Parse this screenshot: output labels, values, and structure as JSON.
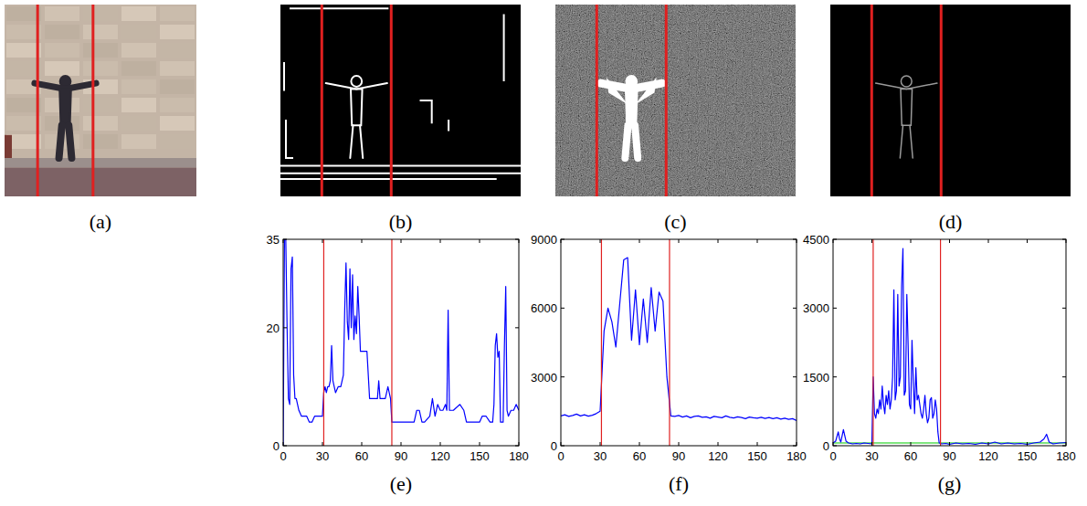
{
  "images": [
    {
      "label": "(a)"
    },
    {
      "label": "(b)"
    },
    {
      "label": "(c)"
    },
    {
      "label": "(d)"
    }
  ],
  "chart_data": [
    {
      "type": "line",
      "title": "(e)",
      "color": "#0000ff",
      "xlim": [
        0,
        180
      ],
      "xticks": [
        0,
        30,
        60,
        90,
        120,
        150,
        180
      ],
      "ylim": [
        0,
        35
      ],
      "yticks": [
        0,
        20,
        35
      ],
      "boundaries": [
        31,
        83
      ],
      "x": [
        0,
        1,
        2,
        3,
        4,
        5,
        6,
        7,
        8,
        9,
        10,
        12,
        14,
        16,
        18,
        20,
        22,
        24,
        26,
        28,
        30,
        31,
        32,
        33,
        34,
        35,
        36,
        37,
        38,
        40,
        42,
        44,
        46,
        47,
        48,
        49,
        50,
        51,
        52,
        53,
        54,
        55,
        56,
        57,
        58,
        59,
        60,
        62,
        64,
        66,
        68,
        70,
        72,
        73,
        74,
        76,
        78,
        80,
        82,
        83,
        84,
        86,
        90,
        95,
        100,
        102,
        104,
        106,
        108,
        112,
        114,
        116,
        118,
        120,
        122,
        124,
        125,
        126,
        127,
        128,
        130,
        135,
        138,
        140,
        145,
        150,
        152,
        155,
        158,
        160,
        161,
        162,
        163,
        164,
        165,
        166,
        167,
        168,
        169,
        170,
        171,
        172,
        174,
        176,
        178,
        180
      ],
      "values": [
        0,
        35,
        35,
        20,
        8,
        7,
        30,
        32,
        12,
        8,
        8,
        6,
        5,
        5,
        5,
        4,
        4,
        5,
        5,
        5,
        5,
        9,
        10,
        9,
        10,
        10,
        11,
        17,
        11,
        9,
        10,
        10,
        12,
        23,
        31,
        21,
        18,
        30,
        20,
        29,
        18,
        22,
        19,
        27,
        22,
        16,
        16,
        16,
        16,
        8,
        8,
        8,
        8,
        11,
        8,
        8,
        8,
        10,
        8,
        4,
        4,
        4,
        4,
        4,
        4,
        6,
        6,
        4,
        4,
        5,
        8,
        5,
        7,
        6,
        6,
        7,
        6,
        23,
        6,
        6,
        6,
        7,
        6,
        4,
        4,
        4,
        5,
        5,
        4,
        4,
        7,
        17,
        19,
        15,
        16,
        4,
        4,
        4,
        17,
        27,
        6,
        5,
        6,
        6,
        7,
        6
      ]
    },
    {
      "type": "line",
      "title": "(f)",
      "color": "#0000ff",
      "xlim": [
        0,
        180
      ],
      "xticks": [
        0,
        30,
        60,
        90,
        120,
        150,
        180
      ],
      "ylim": [
        0,
        9000
      ],
      "yticks": [
        0,
        3000,
        6000,
        9000
      ],
      "boundaries": [
        31,
        83
      ],
      "x": [
        0,
        3,
        6,
        9,
        12,
        15,
        18,
        21,
        24,
        27,
        30,
        33,
        36,
        39,
        42,
        45,
        48,
        51,
        54,
        57,
        60,
        63,
        66,
        69,
        72,
        75,
        78,
        81,
        84,
        87,
        90,
        93,
        96,
        99,
        102,
        105,
        108,
        111,
        114,
        117,
        120,
        123,
        126,
        129,
        132,
        135,
        138,
        141,
        144,
        147,
        150,
        153,
        156,
        159,
        162,
        165,
        168,
        171,
        174,
        177,
        180
      ],
      "values": [
        1300,
        1350,
        1280,
        1320,
        1380,
        1300,
        1350,
        1290,
        1330,
        1400,
        1500,
        5000,
        6000,
        5400,
        4300,
        6200,
        8100,
        8200,
        4600,
        6800,
        4400,
        6400,
        4500,
        6900,
        5000,
        6700,
        6300,
        3000,
        1300,
        1280,
        1320,
        1250,
        1300,
        1220,
        1280,
        1300,
        1240,
        1260,
        1200,
        1280,
        1250,
        1220,
        1300,
        1240,
        1210,
        1260,
        1230,
        1180,
        1250,
        1220,
        1200,
        1240,
        1190,
        1230,
        1180,
        1220,
        1160,
        1200,
        1150,
        1180,
        1100
      ]
    },
    {
      "type": "line",
      "title": "(g)",
      "color": "#0000ff",
      "xlim": [
        0,
        180
      ],
      "xticks": [
        0,
        30,
        60,
        90,
        120,
        150,
        180
      ],
      "ylim": [
        0,
        4500
      ],
      "yticks": [
        0,
        1500,
        3000,
        4500
      ],
      "boundaries": [
        31,
        83
      ],
      "threshold": 60,
      "x": [
        0,
        2,
        4,
        5,
        6,
        8,
        10,
        12,
        15,
        18,
        21,
        24,
        27,
        30,
        31,
        32,
        33,
        34,
        35,
        36,
        37,
        38,
        39,
        40,
        41,
        42,
        43,
        44,
        45,
        46,
        47,
        48,
        49,
        50,
        51,
        52,
        53,
        54,
        55,
        56,
        57,
        58,
        59,
        60,
        61,
        62,
        63,
        64,
        65,
        66,
        67,
        68,
        69,
        70,
        71,
        72,
        73,
        74,
        75,
        76,
        77,
        78,
        79,
        80,
        81,
        82,
        84,
        87,
        90,
        95,
        100,
        105,
        110,
        115,
        120,
        125,
        130,
        135,
        140,
        145,
        150,
        155,
        160,
        163,
        165,
        167,
        170,
        175,
        180
      ],
      "values": [
        60,
        100,
        300,
        150,
        80,
        350,
        100,
        60,
        40,
        50,
        40,
        60,
        50,
        40,
        1500,
        700,
        600,
        800,
        700,
        1000,
        800,
        1300,
        900,
        700,
        1100,
        900,
        1200,
        800,
        1000,
        1500,
        3400,
        1000,
        1200,
        3300,
        1300,
        1500,
        3500,
        4300,
        1100,
        1200,
        3300,
        2200,
        900,
        800,
        2300,
        1400,
        700,
        1700,
        1000,
        1100,
        900,
        700,
        600,
        800,
        1100,
        700,
        500,
        600,
        1000,
        1050,
        600,
        700,
        1000,
        800,
        300,
        60,
        40,
        50,
        30,
        60,
        40,
        50,
        30,
        60,
        40,
        80,
        40,
        60,
        40,
        50,
        30,
        60,
        80,
        150,
        250,
        80,
        40,
        60,
        70
      ]
    }
  ]
}
